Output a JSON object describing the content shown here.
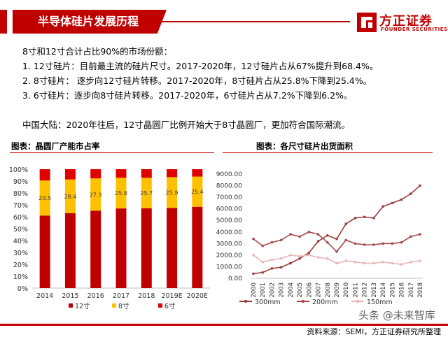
{
  "header": {
    "title": "半导体硅片发展历程"
  },
  "logo": {
    "name": "方正证券",
    "sub": "FOUNDER SECURITIES"
  },
  "body": {
    "lines": [
      "8寸和12寸合计占比90%的市场份额：",
      "1.   12寸硅片：目前最主流的硅片尺寸。2017-2020年，12寸硅片占从67%提升到68.4%。",
      "2.   8寸硅片：  逐步向12寸硅片转移。2017-2020年，8寸硅片占从25.8%下降到25.4%。",
      "3.   6寸硅片：逐步向8寸硅片转移。2017-2020年，6寸硅片占从7.2%下降到6.2%。",
      "中国大陆：2020年往后，12寸晶圆厂比例开始大于8寸晶圆厂，更加符合国际潮流。"
    ]
  },
  "colors": {
    "accent": "#c00000",
    "bar12": "#c00000",
    "bar8": "#ffc000",
    "bar6": "#e00000",
    "line300": "#9b3b3b",
    "line200": "#a44a4a",
    "line150": "#e9b6b6"
  },
  "chart_data": [
    {
      "type": "bar",
      "stacked": true,
      "title": "图表：晶圆厂产能市占率",
      "categories": [
        "2014",
        "2015",
        "2016",
        "2017",
        "2018",
        "2019E",
        "2020E"
      ],
      "series": [
        {
          "name": "12寸",
          "values": [
            61,
            63,
            65,
            67,
            67.1,
            67.4,
            68.4
          ]
        },
        {
          "name": "8寸",
          "values": [
            29.5,
            28.4,
            27.3,
            25.8,
            25.7,
            25.9,
            25.4
          ],
          "labels": [
            "29.5",
            "28.4",
            "27.3",
            "25.8",
            "25.7",
            "25.9",
            "25.4"
          ]
        },
        {
          "name": "6寸",
          "values": [
            9.5,
            8.6,
            7.7,
            7.2,
            7.2,
            6.7,
            6.2
          ]
        }
      ],
      "yticks": [
        "0%",
        "10%",
        "20%",
        "30%",
        "40%",
        "50%",
        "60%",
        "70%",
        "80%",
        "90%",
        "100%"
      ],
      "ylim": [
        0,
        100
      ],
      "legend": "bottom"
    },
    {
      "type": "line",
      "title": "图表：各尺寸硅片出货面积",
      "x": [
        "2000",
        "2001",
        "2002",
        "2003",
        "2004",
        "2005",
        "2006",
        "2007",
        "2008",
        "2009",
        "2010",
        "2011",
        "2012",
        "2013",
        "2014",
        "2015",
        "2016",
        "2017",
        "2018"
      ],
      "series": [
        {
          "name": "300mm",
          "values": [
            400,
            500,
            850,
            950,
            1300,
            1700,
            2200,
            3200,
            3700,
            3400,
            4700,
            5200,
            5300,
            5200,
            6200,
            6500,
            6800,
            7300,
            8000
          ]
        },
        {
          "name": "200mm",
          "values": [
            3400,
            2800,
            3100,
            3300,
            3800,
            3600,
            4000,
            3800,
            3100,
            2300,
            3300,
            3000,
            2900,
            2900,
            3000,
            3000,
            3100,
            3600,
            3800
          ]
        },
        {
          "name": "150mm",
          "values": [
            2000,
            1400,
            1600,
            1700,
            2000,
            1900,
            2000,
            1800,
            1700,
            1300,
            1500,
            1400,
            1300,
            1300,
            1400,
            1300,
            1200,
            1400,
            1500
          ]
        }
      ],
      "yticks": [
        "0.00",
        "1000.00",
        "2000.00",
        "3000.00",
        "4000.00",
        "5000.00",
        "6000.00",
        "7000.00",
        "8000.00",
        "9000.00"
      ],
      "ylim": [
        0,
        9000
      ],
      "legend": "bottom"
    }
  ],
  "footer": {
    "source": "资料来源：SEMI，方正证券研究所整理"
  },
  "watermark": "头条 @未来智库"
}
